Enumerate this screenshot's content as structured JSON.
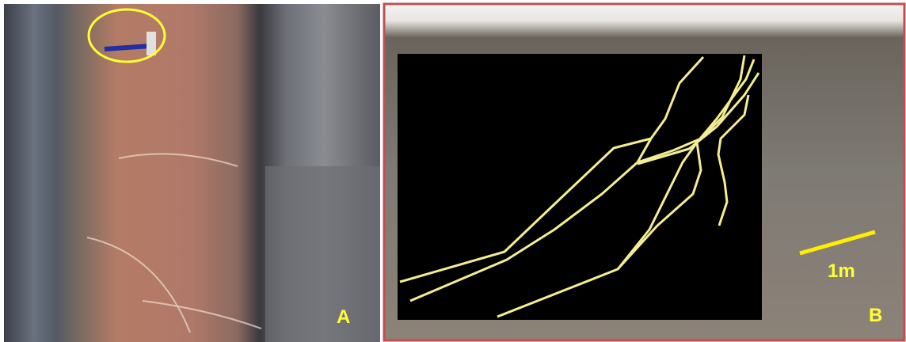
{
  "panels": [
    {
      "label": "A"
    },
    {
      "label": "B",
      "scale_label": "1m"
    }
  ]
}
